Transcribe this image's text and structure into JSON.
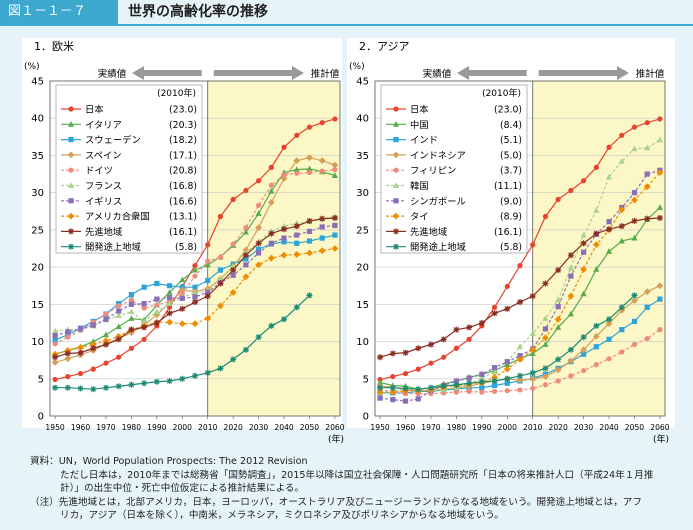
{
  "figure": {
    "label": "図１－１－７",
    "title": "世界の高齢化率の推移"
  },
  "panels": [
    {
      "title": "1．欧米",
      "actual_label": "実績値",
      "projected_label": "推計値"
    },
    {
      "title": "2．アジア",
      "actual_label": "実績値",
      "projected_label": "推計値"
    }
  ],
  "axis": {
    "unit_top": "(%)",
    "unit_bottom": "(年)"
  },
  "legend_year": "(2010年)",
  "colors": {
    "header": "#3ea9cf",
    "projection_bg": "#fbf7c6",
    "frame_bg": "#ffffff",
    "page_bg": "#e6f4f9"
  },
  "chart_data": [
    {
      "type": "line",
      "title": "1．欧米",
      "xlabel": "(年)",
      "ylabel": "(%)",
      "x": [
        1950,
        1955,
        1960,
        1965,
        1970,
        1975,
        1980,
        1985,
        1990,
        1995,
        2000,
        2005,
        2010,
        2015,
        2020,
        2025,
        2030,
        2035,
        2040,
        2045,
        2050,
        2055,
        2060
      ],
      "xlim": [
        1948,
        2062
      ],
      "ylim": [
        0,
        45
      ],
      "xticks": [
        1950,
        1960,
        1970,
        1980,
        1990,
        2000,
        2010,
        2020,
        2030,
        2040,
        2050,
        2060
      ],
      "yticks": [
        0,
        5,
        10,
        15,
        20,
        25,
        30,
        35,
        40,
        45
      ],
      "projection_start": 2010,
      "series": [
        {
          "name": "日本",
          "value_2010": "(23.0)",
          "color": "#e8432e",
          "marker": "circle",
          "dash": false,
          "values": [
            4.9,
            5.3,
            5.7,
            6.3,
            7.1,
            7.9,
            9.1,
            10.3,
            12.1,
            14.6,
            17.4,
            20.2,
            23.0,
            26.8,
            29.1,
            30.3,
            31.6,
            33.4,
            36.1,
            37.7,
            38.8,
            39.4,
            39.9
          ]
        },
        {
          "name": "イタリア",
          "value_2010": "(20.3)",
          "color": "#55ad4a",
          "marker": "triangle",
          "dash": false,
          "values": [
            8.3,
            8.8,
            9.3,
            10.0,
            10.9,
            12.0,
            13.1,
            12.9,
            14.9,
            16.6,
            18.3,
            19.6,
            20.3,
            21.4,
            22.9,
            24.7,
            27.2,
            30.2,
            32.7,
            33.1,
            33.2,
            32.8,
            32.3
          ]
        },
        {
          "name": "スウェーデン",
          "value_2010": "(18.2)",
          "color": "#2ea3d9",
          "marker": "square",
          "dash": false,
          "values": [
            10.2,
            10.9,
            11.8,
            12.7,
            13.7,
            15.1,
            16.3,
            17.3,
            17.8,
            17.5,
            17.3,
            17.3,
            18.2,
            19.6,
            20.4,
            21.1,
            22.4,
            23.1,
            23.4,
            23.2,
            23.5,
            23.9,
            24.3
          ]
        },
        {
          "name": "スペイン",
          "value_2010": "(17.1)",
          "color": "#d4a058",
          "marker": "diamond",
          "dash": false,
          "values": [
            7.2,
            7.7,
            8.2,
            8.8,
            9.7,
            10.4,
            11.2,
            12.2,
            13.6,
            15.2,
            16.9,
            16.7,
            17.1,
            18.4,
            20.1,
            22.3,
            25.3,
            28.7,
            31.9,
            34.3,
            34.7,
            34.3,
            33.7
          ]
        },
        {
          "name": "ドイツ",
          "value_2010": "(20.8)",
          "color": "#f08a7c",
          "marker": "circle",
          "dash": true,
          "values": [
            9.7,
            10.6,
            11.5,
            12.6,
            13.7,
            14.8,
            15.6,
            14.5,
            14.9,
            15.4,
            16.4,
            18.8,
            20.8,
            21.3,
            23.1,
            25.3,
            28.3,
            31.0,
            32.4,
            32.6,
            32.7,
            32.9,
            33.1
          ]
        },
        {
          "name": "フランス",
          "value_2010": "(16.8)",
          "color": "#a9d38b",
          "marker": "triangle",
          "dash": true,
          "values": [
            11.4,
            11.6,
            11.6,
            12.1,
            12.9,
            13.5,
            14.0,
            12.7,
            14.0,
            15.1,
            16.0,
            16.5,
            16.8,
            18.4,
            20.1,
            21.9,
            23.4,
            24.8,
            25.5,
            25.9,
            26.1,
            26.5,
            26.8
          ]
        },
        {
          "name": "イギリス",
          "value_2010": "(16.6)",
          "color": "#8a6fb8",
          "marker": "square",
          "dash": true,
          "values": [
            10.8,
            11.3,
            11.7,
            12.2,
            13.0,
            14.1,
            15.0,
            15.1,
            15.7,
            15.9,
            15.8,
            16.0,
            16.6,
            17.9,
            18.9,
            20.3,
            21.9,
            23.2,
            23.9,
            24.3,
            24.8,
            25.4,
            25.6
          ]
        },
        {
          "name": "アメリカ合衆国",
          "value_2010": "(13.1)",
          "color": "#f08c00",
          "marker": "diamond",
          "dash": true,
          "values": [
            8.3,
            8.8,
            9.2,
            9.6,
            10.1,
            10.7,
            11.6,
            12.1,
            12.6,
            12.6,
            12.4,
            12.4,
            13.1,
            14.8,
            16.6,
            18.7,
            20.3,
            21.2,
            21.6,
            21.7,
            21.9,
            22.2,
            22.5
          ]
        },
        {
          "name": "先進地域",
          "value_2010": "(16.1)",
          "color": "#8b2d22",
          "marker": "star",
          "dash": false,
          "values": [
            7.9,
            8.4,
            8.5,
            9.1,
            9.6,
            10.3,
            11.6,
            11.9,
            12.5,
            13.8,
            14.4,
            15.3,
            16.1,
            17.8,
            19.6,
            21.6,
            23.2,
            24.5,
            25.1,
            25.5,
            26.2,
            26.5,
            26.6
          ]
        },
        {
          "name": "開発途上地域",
          "value_2010": "(5.8)",
          "color": "#1d8a74",
          "marker": "star",
          "dash": false,
          "values": [
            3.8,
            3.8,
            3.7,
            3.6,
            3.8,
            4.0,
            4.2,
            4.4,
            4.6,
            4.7,
            5.0,
            5.4,
            5.8,
            6.4,
            7.6,
            8.9,
            10.6,
            12.1,
            13.0,
            14.6,
            16.2,
            null,
            null
          ]
        }
      ]
    },
    {
      "type": "line",
      "title": "2．アジア",
      "xlabel": "(年)",
      "ylabel": "(%)",
      "x": [
        1950,
        1955,
        1960,
        1965,
        1970,
        1975,
        1980,
        1985,
        1990,
        1995,
        2000,
        2005,
        2010,
        2015,
        2020,
        2025,
        2030,
        2035,
        2040,
        2045,
        2050,
        2055,
        2060
      ],
      "xlim": [
        1948,
        2062
      ],
      "ylim": [
        0,
        45
      ],
      "xticks": [
        1950,
        1960,
        1970,
        1980,
        1990,
        2000,
        2010,
        2020,
        2030,
        2040,
        2050,
        2060
      ],
      "yticks": [
        0,
        5,
        10,
        15,
        20,
        25,
        30,
        35,
        40,
        45
      ],
      "projection_start": 2010,
      "series": [
        {
          "name": "日本",
          "value_2010": "(23.0)",
          "color": "#e8432e",
          "marker": "circle",
          "dash": false,
          "values": [
            4.9,
            5.3,
            5.7,
            6.3,
            7.1,
            7.9,
            9.1,
            10.3,
            12.1,
            14.6,
            17.4,
            20.2,
            23.0,
            26.8,
            29.1,
            30.3,
            31.6,
            33.4,
            36.1,
            37.7,
            38.8,
            39.4,
            39.9
          ]
        },
        {
          "name": "中国",
          "value_2010": "(8.4)",
          "color": "#55ad4a",
          "marker": "triangle",
          "dash": false,
          "values": [
            4.5,
            4.1,
            4.0,
            3.6,
            3.8,
            4.3,
            4.7,
            5.2,
            5.6,
            6.1,
            6.9,
            7.7,
            8.4,
            9.6,
            11.9,
            13.7,
            16.4,
            19.7,
            22.1,
            23.5,
            23.9,
            26.4,
            28.0
          ]
        },
        {
          "name": "インド",
          "value_2010": "(5.1)",
          "color": "#2ea3d9",
          "marker": "square",
          "dash": false,
          "values": [
            3.1,
            3.1,
            3.1,
            3.3,
            3.3,
            3.5,
            3.6,
            3.8,
            3.8,
            4.1,
            4.4,
            4.7,
            5.1,
            5.6,
            6.4,
            7.3,
            8.3,
            9.3,
            10.3,
            11.6,
            12.7,
            14.6,
            15.7
          ]
        },
        {
          "name": "インドネシア",
          "value_2010": "(5.0)",
          "color": "#d4a058",
          "marker": "diamond",
          "dash": false,
          "values": [
            4.0,
            3.9,
            3.5,
            3.4,
            3.4,
            3.6,
            3.8,
            4.0,
            4.4,
            4.7,
            5.0,
            4.8,
            5.0,
            5.3,
            6.2,
            7.4,
            8.9,
            10.7,
            12.4,
            14.2,
            15.5,
            16.7,
            17.5
          ]
        },
        {
          "name": "フィリピン",
          "value_2010": "(3.7)",
          "color": "#f08a7c",
          "marker": "circle",
          "dash": true,
          "values": [
            3.6,
            3.2,
            3.0,
            3.0,
            3.0,
            3.1,
            3.2,
            3.3,
            3.2,
            3.3,
            3.4,
            3.5,
            3.7,
            4.2,
            4.7,
            5.4,
            6.1,
            6.9,
            7.7,
            8.6,
            9.6,
            10.4,
            11.6
          ]
        },
        {
          "name": "韓国",
          "value_2010": "(11.1)",
          "color": "#a9d38b",
          "marker": "triangle",
          "dash": true,
          "values": [
            2.9,
            3.3,
            3.7,
            3.5,
            3.4,
            3.5,
            3.8,
            4.3,
            5.1,
            5.9,
            7.3,
            9.3,
            11.1,
            13.1,
            15.6,
            19.9,
            24.3,
            27.6,
            32.1,
            34.2,
            35.9,
            36.0,
            37.1
          ]
        },
        {
          "name": "シンガポール",
          "value_2010": "(9.0)",
          "color": "#8a6fb8",
          "marker": "square",
          "dash": true,
          "values": [
            2.4,
            2.2,
            2.0,
            2.3,
            3.4,
            4.1,
            4.7,
            5.1,
            5.6,
            6.5,
            7.3,
            8.1,
            9.0,
            11.7,
            14.7,
            18.8,
            22.0,
            24.4,
            26.1,
            28.0,
            30.0,
            32.5,
            33.0
          ]
        },
        {
          "name": "タイ",
          "value_2010": "(8.9)",
          "color": "#f08c00",
          "marker": "diamond",
          "dash": true,
          "values": [
            3.2,
            3.2,
            3.4,
            3.4,
            3.5,
            3.9,
            4.1,
            4.3,
            4.5,
            5.2,
            6.3,
            7.6,
            8.9,
            10.5,
            13.0,
            16.1,
            19.7,
            23.0,
            25.0,
            27.7,
            29.0,
            30.8,
            32.7
          ]
        },
        {
          "name": "先進地域",
          "value_2010": "(16.1)",
          "color": "#8b2d22",
          "marker": "star",
          "dash": false,
          "values": [
            7.9,
            8.4,
            8.5,
            9.1,
            9.6,
            10.3,
            11.6,
            11.9,
            12.5,
            13.8,
            14.4,
            15.3,
            16.1,
            17.8,
            19.6,
            21.6,
            23.2,
            24.5,
            25.1,
            25.5,
            26.2,
            26.5,
            26.6
          ]
        },
        {
          "name": "開発途上地域",
          "value_2010": "(5.8)",
          "color": "#1d8a74",
          "marker": "star",
          "dash": false,
          "values": [
            3.8,
            3.8,
            3.7,
            3.6,
            3.8,
            4.0,
            4.2,
            4.4,
            4.6,
            4.7,
            5.0,
            5.4,
            5.8,
            6.4,
            7.6,
            8.9,
            10.6,
            12.1,
            13.0,
            14.6,
            16.2,
            null,
            null
          ]
        }
      ]
    }
  ],
  "footer": {
    "source_label": "資料：",
    "source_line1": "UN，World Population Prospects: The 2012 Revision",
    "source_line2": "ただし日本は，2010年までは総務省「国勢調査」，2015年以降は国立社会保障・人口問題研究所「日本の将来推計人口（平成24年１月推",
    "source_line3": "計）」の出生中位・死亡中位仮定による推計結果による。",
    "note_label": "（注）",
    "note_line1": "先進地域とは，北部アメリカ，日本，ヨーロッパ，オーストラリア及びニュージーランドからなる地域をいう。開発途上地域とは，アフ",
    "note_line2": "リカ，アジア（日本を除く），中南米，メラネシア，ミクロネシア及びポリネシアからなる地域をいう。"
  }
}
